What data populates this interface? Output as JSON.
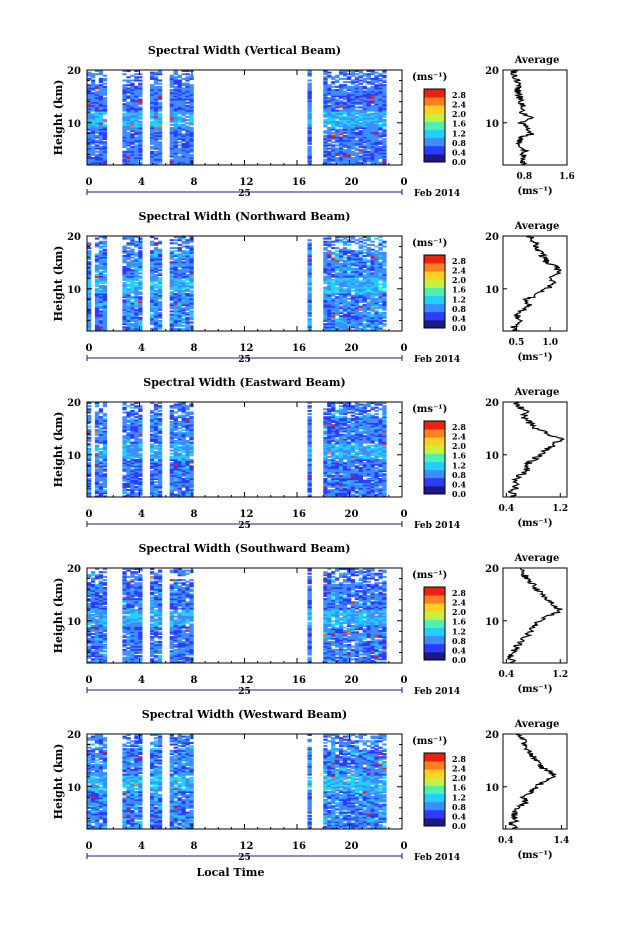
{
  "figure": {
    "ylabel": "Height (km)",
    "date_label": "Feb 2014",
    "day_label": "25",
    "xlabel": "Local Time",
    "colorbar_unit": "(ms⁻¹)",
    "colorbar_ticks": [
      "2.8",
      "2.4",
      "2.0",
      "1.6",
      "1.2",
      "0.8",
      "0.4",
      "0.0"
    ],
    "x_ticks": [
      "0",
      "4",
      "8",
      "12",
      "16",
      "20",
      "0"
    ],
    "y_ticks": [
      "20",
      "10"
    ],
    "avg_title": "Average",
    "avg_unit": "(ms⁻¹)"
  },
  "colors": {
    "colormap": [
      "#1a1a80",
      "#2d3aff",
      "#3f8cff",
      "#22d0ff",
      "#4ff0b0",
      "#c8f040",
      "#ffd020",
      "#ff8020",
      "#ee2010"
    ]
  },
  "chart_data": [
    {
      "type": "heatmap",
      "title": "Spectral Width (Vertical Beam)",
      "ylabel": "Height (km)",
      "xlabel": "",
      "x_range": [
        0,
        24
      ],
      "y_range": [
        2,
        20
      ],
      "clim": [
        0,
        3.0
      ],
      "mean": 0.75,
      "spread": 0.25,
      "gaps": [
        [
          1.5,
          2.8
        ],
        [
          4.1,
          4.8
        ],
        [
          5.6,
          6.2
        ],
        [
          8.0,
          16.9
        ],
        [
          17.2,
          18.0
        ]
      ],
      "avg_profile": {
        "xlim": [
          0.4,
          1.6
        ],
        "xticks": [
          "0.8",
          "1.6"
        ],
        "height": [
          2,
          3,
          4,
          5,
          6,
          7,
          8,
          9,
          10,
          11,
          12,
          13,
          14,
          15,
          16,
          17,
          18,
          19,
          20
        ],
        "value": [
          0.8,
          0.75,
          0.78,
          0.82,
          0.7,
          0.72,
          0.95,
          0.85,
          0.75,
          0.95,
          0.7,
          0.78,
          0.7,
          0.72,
          0.68,
          0.7,
          0.65,
          0.62,
          0.6
        ]
      }
    },
    {
      "type": "heatmap",
      "title": "Spectral Width (Northward Beam)",
      "ylabel": "Height (km)",
      "xlabel": "",
      "x_range": [
        0,
        24
      ],
      "y_range": [
        2,
        20
      ],
      "clim": [
        0,
        3.0
      ],
      "mean": 0.8,
      "spread": 0.3,
      "gaps": [
        [
          0.2,
          0.6
        ],
        [
          1.5,
          2.8
        ],
        [
          4.1,
          4.8
        ],
        [
          5.6,
          6.2
        ],
        [
          8.0,
          16.9
        ],
        [
          17.2,
          18.0
        ]
      ],
      "avg_profile": {
        "xlim": [
          0.3,
          1.25
        ],
        "xticks": [
          "0.5",
          "1.0"
        ],
        "height": [
          2,
          3,
          4,
          5,
          6,
          7,
          8,
          9,
          10,
          11,
          12,
          13,
          14,
          15,
          16,
          17,
          18,
          19,
          20
        ],
        "value": [
          0.5,
          0.45,
          0.55,
          0.5,
          0.6,
          0.7,
          0.65,
          0.8,
          0.95,
          1.05,
          1.0,
          1.15,
          1.1,
          0.95,
          0.9,
          0.85,
          0.8,
          0.75,
          0.7
        ]
      }
    },
    {
      "type": "heatmap",
      "title": "Spectral Width (Eastward Beam)",
      "ylabel": "Height (km)",
      "xlabel": "",
      "x_range": [
        0,
        24
      ],
      "y_range": [
        2,
        20
      ],
      "clim": [
        0,
        3.0
      ],
      "mean": 0.75,
      "spread": 0.3,
      "gaps": [
        [
          0.2,
          0.5
        ],
        [
          1.5,
          2.8
        ],
        [
          4.1,
          4.8
        ],
        [
          5.6,
          6.2
        ],
        [
          8.0,
          16.9
        ],
        [
          17.2,
          18.0
        ]
      ],
      "avg_profile": {
        "xlim": [
          0.35,
          1.3
        ],
        "xticks": [
          "0.4",
          "1.2"
        ],
        "height": [
          2,
          3,
          4,
          5,
          6,
          7,
          8,
          9,
          10,
          11,
          12,
          13,
          14,
          15,
          16,
          17,
          18,
          19,
          20
        ],
        "value": [
          0.5,
          0.48,
          0.55,
          0.52,
          0.6,
          0.72,
          0.68,
          0.8,
          0.9,
          1.0,
          1.1,
          1.2,
          1.0,
          0.85,
          0.75,
          0.65,
          0.7,
          0.6,
          0.55
        ]
      }
    },
    {
      "type": "heatmap",
      "title": "Spectral Width (Southward Beam)",
      "ylabel": "Height (km)",
      "xlabel": "",
      "x_range": [
        0,
        24
      ],
      "y_range": [
        2,
        20
      ],
      "clim": [
        0,
        3.0
      ],
      "mean": 0.75,
      "spread": 0.3,
      "gaps": [
        [
          1.5,
          2.8
        ],
        [
          4.1,
          4.8
        ],
        [
          5.6,
          6.2
        ],
        [
          8.0,
          16.9
        ],
        [
          17.2,
          18.0
        ]
      ],
      "avg_profile": {
        "xlim": [
          0.35,
          1.3
        ],
        "xticks": [
          "0.4",
          "1.2"
        ],
        "height": [
          2,
          3,
          4,
          5,
          6,
          7,
          8,
          9,
          10,
          11,
          12,
          13,
          14,
          15,
          16,
          17,
          18,
          19,
          20
        ],
        "value": [
          0.5,
          0.45,
          0.5,
          0.55,
          0.6,
          0.7,
          0.75,
          0.8,
          0.9,
          1.05,
          1.2,
          1.1,
          1.0,
          0.95,
          0.85,
          0.8,
          0.7,
          0.65,
          0.6
        ]
      }
    },
    {
      "type": "heatmap",
      "title": "Spectral Width (Westward Beam)",
      "ylabel": "Height (km)",
      "xlabel": "Local Time",
      "x_range": [
        0,
        24
      ],
      "y_range": [
        2,
        20
      ],
      "clim": [
        0,
        3.0
      ],
      "mean": 0.8,
      "spread": 0.32,
      "gaps": [
        [
          1.5,
          2.8
        ],
        [
          4.1,
          4.8
        ],
        [
          5.6,
          6.2
        ],
        [
          8.0,
          16.9
        ],
        [
          17.2,
          18.0
        ]
      ],
      "avg_profile": {
        "xlim": [
          0.35,
          1.5
        ],
        "xticks": [
          "0.4",
          "1.4"
        ],
        "height": [
          2,
          3,
          4,
          5,
          6,
          7,
          8,
          9,
          10,
          11,
          12,
          13,
          14,
          15,
          16,
          17,
          18,
          19,
          20
        ],
        "value": [
          0.55,
          0.5,
          0.6,
          0.55,
          0.65,
          0.75,
          0.7,
          0.85,
          0.95,
          1.1,
          1.3,
          1.15,
          1.0,
          0.95,
          0.85,
          0.8,
          0.75,
          0.7,
          0.65
        ]
      }
    }
  ]
}
